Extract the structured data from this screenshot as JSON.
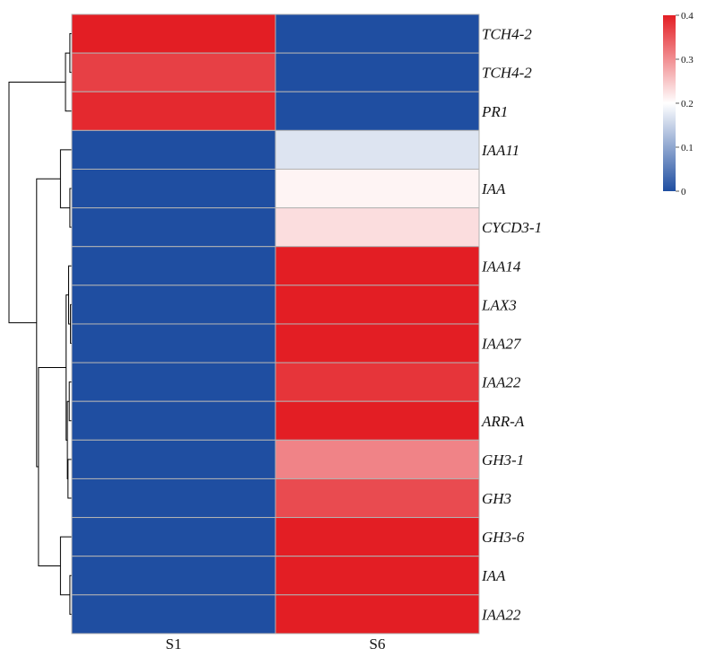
{
  "chart_data": {
    "type": "heatmap",
    "title": "",
    "xlabel": "",
    "ylabel": "",
    "columns": [
      "S1",
      "S6"
    ],
    "rows": [
      "TCH4-2",
      "TCH4-2",
      "PR1",
      "IAA11",
      "IAA",
      "CYCD3-1",
      "IAA14",
      "LAX3",
      "IAA27",
      "IAA22",
      "ARR-A",
      "GH3-1",
      "GH3",
      "GH3-6",
      "IAA",
      "IAA22"
    ],
    "values": [
      [
        0.4,
        0.0
      ],
      [
        0.37,
        0.0
      ],
      [
        0.39,
        0.0
      ],
      [
        0.0,
        0.17
      ],
      [
        0.0,
        0.21
      ],
      [
        0.0,
        0.23
      ],
      [
        0.0,
        0.4
      ],
      [
        0.0,
        0.4
      ],
      [
        0.0,
        0.4
      ],
      [
        0.0,
        0.38
      ],
      [
        0.0,
        0.4
      ],
      [
        0.0,
        0.31
      ],
      [
        0.0,
        0.36
      ],
      [
        0.0,
        0.4
      ],
      [
        0.0,
        0.4
      ],
      [
        0.0,
        0.4
      ]
    ],
    "colorbar": {
      "min": 0,
      "max": 0.4,
      "ticks": [
        "0",
        "0.1",
        "0.2",
        "0.3",
        "0.4"
      ],
      "colors": {
        "low": "#1f4ea1",
        "mid": "#ffffff",
        "high": "#e31e24"
      }
    },
    "row_dendrogram": true,
    "dendrogram": {
      "leaf_heights": [
        0,
        0,
        0,
        0,
        0,
        0,
        0,
        0,
        0,
        0,
        0,
        0,
        0,
        0,
        0,
        0
      ],
      "merges": [
        [
          "A",
          0,
          1,
          0.3
        ],
        [
          "B",
          "A",
          2,
          1.0
        ],
        [
          "C",
          4,
          5,
          0.3
        ],
        [
          "D",
          3,
          "C",
          1.8
        ],
        [
          "E",
          7,
          8,
          0.2
        ],
        [
          "F",
          6,
          "E",
          0.5
        ],
        [
          "G",
          9,
          10,
          0.4
        ],
        [
          "H",
          11,
          12,
          0.6
        ],
        [
          "I",
          "G",
          "H",
          0.7
        ],
        [
          "J",
          "F",
          "I",
          0.9
        ],
        [
          "K",
          14,
          15,
          0.3
        ],
        [
          "L",
          13,
          "K",
          1.8
        ],
        [
          "M",
          "J",
          "L",
          5.3
        ],
        [
          "N",
          "D",
          "M",
          5.6
        ],
        [
          "O",
          "B",
          "N",
          10.0
        ]
      ]
    }
  }
}
